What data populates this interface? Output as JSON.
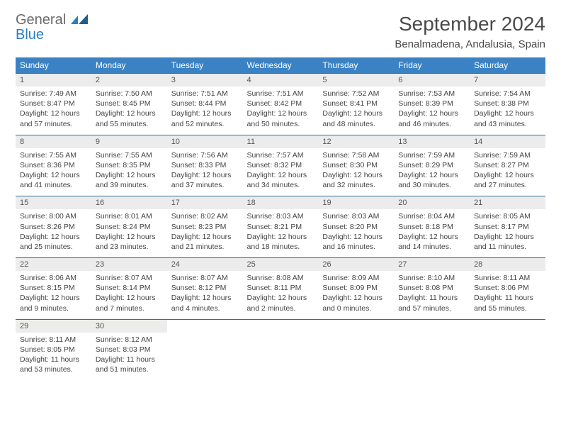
{
  "logo": {
    "line1": "General",
    "line2": "Blue"
  },
  "title": "September 2024",
  "location": "Benalmadena, Andalusia, Spain",
  "colors": {
    "header_bg": "#3b82c4",
    "header_text": "#ffffff",
    "daynum_bg": "#ececec",
    "row_border": "#2a6fa8",
    "body_text": "#444444"
  },
  "day_names": [
    "Sunday",
    "Monday",
    "Tuesday",
    "Wednesday",
    "Thursday",
    "Friday",
    "Saturday"
  ],
  "weeks": [
    [
      {
        "n": "1",
        "sr": "7:49 AM",
        "ss": "8:47 PM",
        "dl": "12 hours and 57 minutes."
      },
      {
        "n": "2",
        "sr": "7:50 AM",
        "ss": "8:45 PM",
        "dl": "12 hours and 55 minutes."
      },
      {
        "n": "3",
        "sr": "7:51 AM",
        "ss": "8:44 PM",
        "dl": "12 hours and 52 minutes."
      },
      {
        "n": "4",
        "sr": "7:51 AM",
        "ss": "8:42 PM",
        "dl": "12 hours and 50 minutes."
      },
      {
        "n": "5",
        "sr": "7:52 AM",
        "ss": "8:41 PM",
        "dl": "12 hours and 48 minutes."
      },
      {
        "n": "6",
        "sr": "7:53 AM",
        "ss": "8:39 PM",
        "dl": "12 hours and 46 minutes."
      },
      {
        "n": "7",
        "sr": "7:54 AM",
        "ss": "8:38 PM",
        "dl": "12 hours and 43 minutes."
      }
    ],
    [
      {
        "n": "8",
        "sr": "7:55 AM",
        "ss": "8:36 PM",
        "dl": "12 hours and 41 minutes."
      },
      {
        "n": "9",
        "sr": "7:55 AM",
        "ss": "8:35 PM",
        "dl": "12 hours and 39 minutes."
      },
      {
        "n": "10",
        "sr": "7:56 AM",
        "ss": "8:33 PM",
        "dl": "12 hours and 37 minutes."
      },
      {
        "n": "11",
        "sr": "7:57 AM",
        "ss": "8:32 PM",
        "dl": "12 hours and 34 minutes."
      },
      {
        "n": "12",
        "sr": "7:58 AM",
        "ss": "8:30 PM",
        "dl": "12 hours and 32 minutes."
      },
      {
        "n": "13",
        "sr": "7:59 AM",
        "ss": "8:29 PM",
        "dl": "12 hours and 30 minutes."
      },
      {
        "n": "14",
        "sr": "7:59 AM",
        "ss": "8:27 PM",
        "dl": "12 hours and 27 minutes."
      }
    ],
    [
      {
        "n": "15",
        "sr": "8:00 AM",
        "ss": "8:26 PM",
        "dl": "12 hours and 25 minutes."
      },
      {
        "n": "16",
        "sr": "8:01 AM",
        "ss": "8:24 PM",
        "dl": "12 hours and 23 minutes."
      },
      {
        "n": "17",
        "sr": "8:02 AM",
        "ss": "8:23 PM",
        "dl": "12 hours and 21 minutes."
      },
      {
        "n": "18",
        "sr": "8:03 AM",
        "ss": "8:21 PM",
        "dl": "12 hours and 18 minutes."
      },
      {
        "n": "19",
        "sr": "8:03 AM",
        "ss": "8:20 PM",
        "dl": "12 hours and 16 minutes."
      },
      {
        "n": "20",
        "sr": "8:04 AM",
        "ss": "8:18 PM",
        "dl": "12 hours and 14 minutes."
      },
      {
        "n": "21",
        "sr": "8:05 AM",
        "ss": "8:17 PM",
        "dl": "12 hours and 11 minutes."
      }
    ],
    [
      {
        "n": "22",
        "sr": "8:06 AM",
        "ss": "8:15 PM",
        "dl": "12 hours and 9 minutes."
      },
      {
        "n": "23",
        "sr": "8:07 AM",
        "ss": "8:14 PM",
        "dl": "12 hours and 7 minutes."
      },
      {
        "n": "24",
        "sr": "8:07 AM",
        "ss": "8:12 PM",
        "dl": "12 hours and 4 minutes."
      },
      {
        "n": "25",
        "sr": "8:08 AM",
        "ss": "8:11 PM",
        "dl": "12 hours and 2 minutes."
      },
      {
        "n": "26",
        "sr": "8:09 AM",
        "ss": "8:09 PM",
        "dl": "12 hours and 0 minutes."
      },
      {
        "n": "27",
        "sr": "8:10 AM",
        "ss": "8:08 PM",
        "dl": "11 hours and 57 minutes."
      },
      {
        "n": "28",
        "sr": "8:11 AM",
        "ss": "8:06 PM",
        "dl": "11 hours and 55 minutes."
      }
    ],
    [
      {
        "n": "29",
        "sr": "8:11 AM",
        "ss": "8:05 PM",
        "dl": "11 hours and 53 minutes."
      },
      {
        "n": "30",
        "sr": "8:12 AM",
        "ss": "8:03 PM",
        "dl": "11 hours and 51 minutes."
      },
      null,
      null,
      null,
      null,
      null
    ]
  ],
  "labels": {
    "sunrise": "Sunrise:",
    "sunset": "Sunset:",
    "daylight": "Daylight:"
  }
}
